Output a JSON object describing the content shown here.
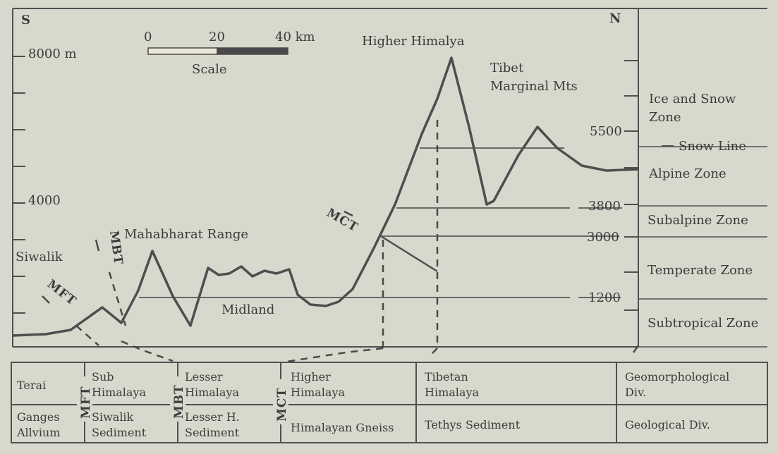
{
  "directions": {
    "south": "S",
    "north": "N"
  },
  "scale": {
    "ticks": [
      "0",
      "20",
      "40 km"
    ],
    "label": "Scale"
  },
  "elevation_labels": {
    "e8000": "8000 m",
    "e4000": "4000"
  },
  "peaks": {
    "higher_himalaya": "Higher Himalya",
    "tibet_line1": "Tibet",
    "tibet_line2": "Marginal Mts",
    "mahabharat": "Mahabharat Range",
    "midland": "Midland",
    "siwalik": "Siwalik"
  },
  "faults": {
    "mft": "MFT",
    "mbt": "MBT",
    "mct": "MCT"
  },
  "zone_elevations": [
    "5500",
    "3800",
    "3000",
    "1200"
  ],
  "zones": {
    "ice_line1": "Ice and Snow",
    "ice_line2": "Zone",
    "snow_line": "Snow Line",
    "alpine": "Alpine Zone",
    "subalpine": "Subalpine Zone",
    "temperate": "Temperate Zone",
    "subtropical": "Subtropical Zone"
  },
  "table": {
    "geomorph": {
      "terai": "Terai",
      "sub1": "Sub",
      "sub2": "Himalaya",
      "lesser1": "Lesser",
      "lesser2": "Himalaya",
      "higher1": "Higher",
      "higher2": "Himalaya",
      "tibetan1": "Tibetan",
      "tibetan2": "Himalaya",
      "div1": "Geomorphological",
      "div2": "Div."
    },
    "geology": {
      "ganges1": "Ganges",
      "ganges2": "Allvium",
      "siwalik1": "Siwalik",
      "siwalik2": "Sediment",
      "lesserh1": "Lesser H.",
      "lesserh2": "Sediment",
      "gneiss": "Himalayan Gneiss",
      "tethys": "Tethys Sediment",
      "div": "Geological Div."
    }
  },
  "colors": {
    "background": "#d9d8cd",
    "ink": "#3c3c3c",
    "line": "#5a5a5a"
  }
}
